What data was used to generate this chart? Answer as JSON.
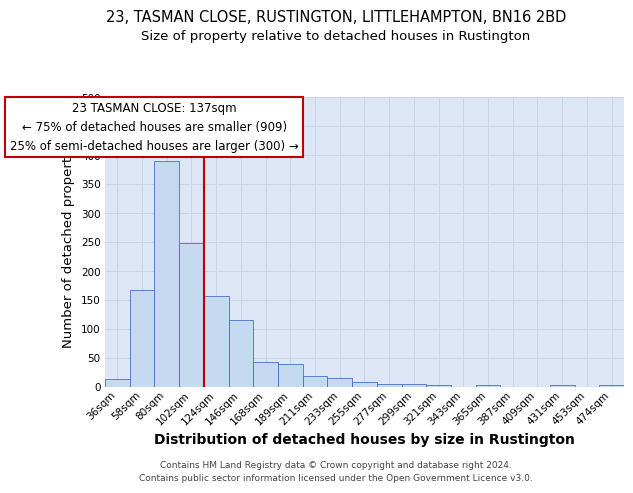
{
  "title": "23, TASMAN CLOSE, RUSTINGTON, LITTLEHAMPTON, BN16 2BD",
  "subtitle": "Size of property relative to detached houses in Rustington",
  "xlabel": "Distribution of detached houses by size in Rustington",
  "ylabel": "Number of detached properties",
  "categories": [
    "36sqm",
    "58sqm",
    "80sqm",
    "102sqm",
    "124sqm",
    "146sqm",
    "168sqm",
    "189sqm",
    "211sqm",
    "233sqm",
    "255sqm",
    "277sqm",
    "299sqm",
    "321sqm",
    "343sqm",
    "365sqm",
    "387sqm",
    "409sqm",
    "431sqm",
    "453sqm",
    "474sqm"
  ],
  "values": [
    13,
    167,
    390,
    249,
    157,
    115,
    43,
    39,
    19,
    15,
    9,
    6,
    5,
    4,
    0,
    4,
    0,
    0,
    4,
    0,
    4
  ],
  "bar_color": "#c5d9f1",
  "bar_edge_color": "#4472c4",
  "property_line_color": "#c00000",
  "annotation_title": "23 TASMAN CLOSE: 137sqm",
  "annotation_line2": "← 75% of detached houses are smaller (909)",
  "annotation_line3": "25% of semi-detached houses are larger (300) →",
  "annotation_box_color": "#ffffff",
  "annotation_box_edge_color": "#c00000",
  "ylim": [
    0,
    500
  ],
  "yticks": [
    0,
    50,
    100,
    150,
    200,
    250,
    300,
    350,
    400,
    450,
    500
  ],
  "grid_color": "#c8d4e8",
  "ax_bg_color": "#dce6f5",
  "background_color": "#ffffff",
  "footer_line1": "Contains HM Land Registry data © Crown copyright and database right 2024.",
  "footer_line2": "Contains public sector information licensed under the Open Government Licence v3.0.",
  "title_fontsize": 10.5,
  "subtitle_fontsize": 9.5,
  "annotation_fontsize": 8.5,
  "tick_fontsize": 7.5,
  "axis_label_fontsize": 9.5,
  "xlabel_fontsize": 10.0
}
